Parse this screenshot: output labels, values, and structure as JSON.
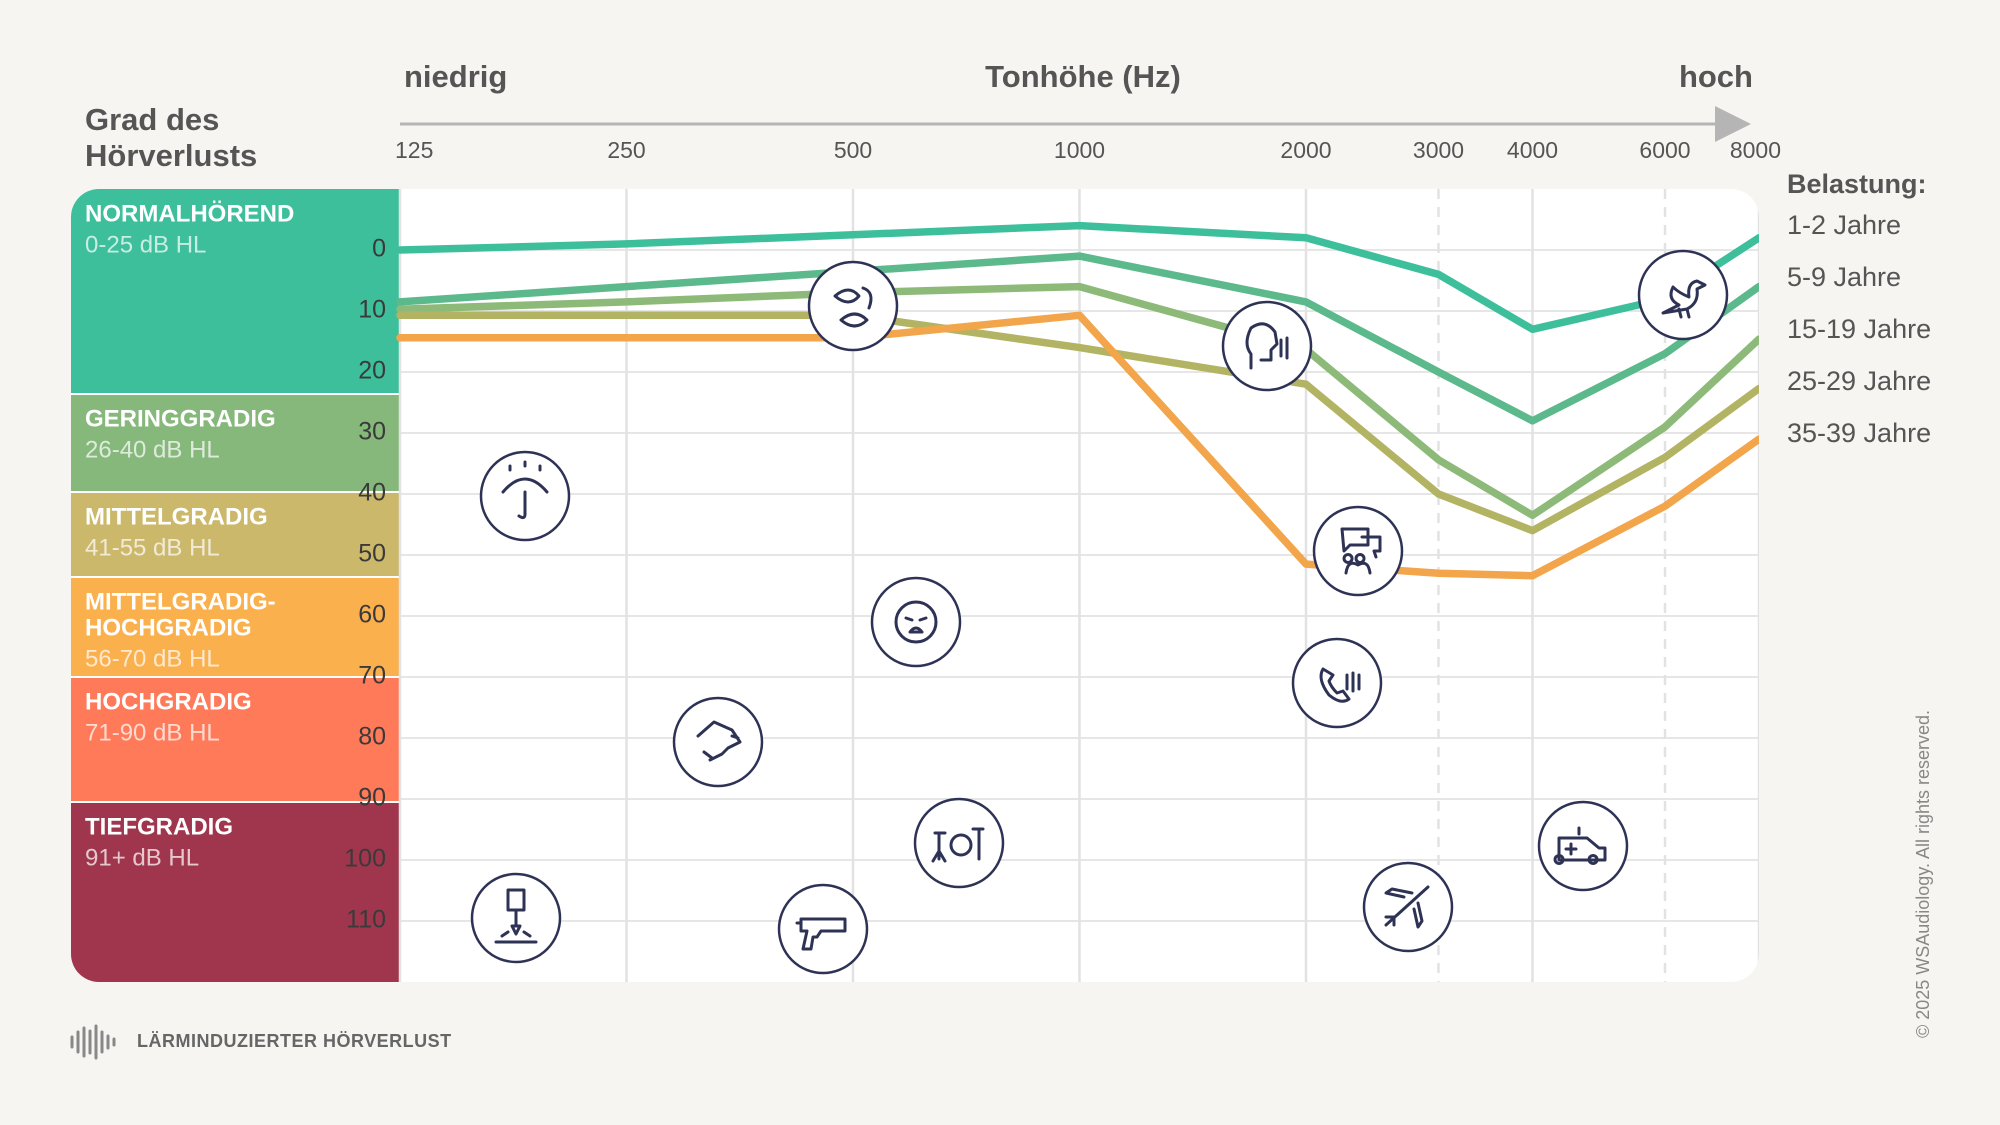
{
  "chart_data": {
    "type": "line",
    "x_label": "Tonhöhe (Hz)",
    "x_label_low": "niedrig",
    "x_label_high": "hoch",
    "y_label": [
      "Grad des",
      "Hörverlusts"
    ],
    "x": [
      125,
      250,
      500,
      1000,
      2000,
      3000,
      4000,
      6000,
      8000
    ],
    "xlim": [
      125,
      8000
    ],
    "xticks": [
      125,
      250,
      500,
      1000,
      2000,
      3000,
      4000,
      6000,
      8000
    ],
    "x_log": true,
    "ylim": [
      -10,
      120
    ],
    "y_reversed": true,
    "yticks": [
      0,
      10,
      20,
      30,
      40,
      50,
      60,
      70,
      80,
      90,
      100,
      110
    ],
    "grid": true,
    "legend_title": "Belastung:",
    "legend_position": "right",
    "series": [
      {
        "name": "1-2 Jahre",
        "color": "#3dbf9c",
        "values": [
          0,
          -1,
          -2.5,
          -4,
          -2,
          4,
          13,
          8,
          -2
        ]
      },
      {
        "name": "5-9 Jahre",
        "color": "#5cb98c",
        "values": [
          8.5,
          6,
          3.5,
          1,
          8.5,
          20,
          28,
          17,
          6
        ]
      },
      {
        "name": "15-19 Jahre",
        "color": "#8dba78",
        "values": [
          9.7,
          8.5,
          7,
          6,
          16.3,
          34.4,
          43.5,
          29,
          14.6
        ]
      },
      {
        "name": "25-29 Jahre",
        "color": "#b3b463",
        "values": [
          10.7,
          10.7,
          10.7,
          16,
          22,
          40,
          46,
          34,
          22.7
        ]
      },
      {
        "name": "35-39 Jahre",
        "color": "#f2a54a",
        "values": [
          14.4,
          14.4,
          14.4,
          10.7,
          51.5,
          53,
          53.4,
          42,
          31
        ]
      }
    ],
    "bands": [
      {
        "title": "NORMALHÖREND",
        "range": "0-25 dB HL",
        "color": "#3dbf9c"
      },
      {
        "title": "GERINGGRADIG",
        "range": "26-40 dB HL",
        "color": "#86b87c"
      },
      {
        "title": "MITTELGRADIG",
        "range": "41-55 dB HL",
        "color": "#cbb86a"
      },
      {
        "title": [
          "MITTELGRADIG-",
          "HOCHGRADIG"
        ],
        "range": "56-70 dB HL",
        "color": "#fbb04e"
      },
      {
        "title": "HOCHGRADIG",
        "range": "71-90 dB HL",
        "color": "#ff7a59"
      },
      {
        "title": "TIEFGRADIG",
        "range": "91+ dB HL",
        "color": "#a0364d"
      }
    ]
  },
  "footer": "LÄRMINDUZIERTER HÖRVERLUST",
  "copyright": "© 2025 WSAudiology. All rights reserved."
}
